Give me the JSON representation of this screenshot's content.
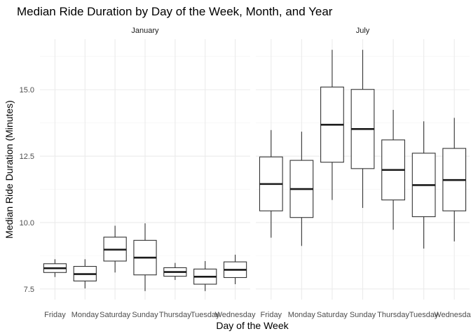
{
  "chart_data": {
    "type": "boxplot",
    "title": "Median Ride Duration by Day of the Week, Month, and Year",
    "xlabel": "Day of the Week",
    "ylabel": "Median Ride Duration (Minutes)",
    "ylim": [
      7.1,
      16.9
    ],
    "yticks": [
      7.5,
      10.0,
      12.5,
      15.0
    ],
    "ytick_labels": [
      "7.5",
      "10.0",
      "12.5",
      "15.0"
    ],
    "grid": true,
    "categories": [
      "Friday",
      "Monday",
      "Saturday",
      "Sunday",
      "Thursday",
      "Tuesday",
      "Wednesday"
    ],
    "panels": [
      {
        "label": "January",
        "boxes": [
          {
            "category": "Friday",
            "min": 7.95,
            "q1": 8.12,
            "median": 8.28,
            "q3": 8.45,
            "max": 8.62
          },
          {
            "category": "Monday",
            "min": 7.52,
            "q1": 7.8,
            "median": 8.06,
            "q3": 8.35,
            "max": 8.62
          },
          {
            "category": "Saturday",
            "min": 8.12,
            "q1": 8.55,
            "median": 8.98,
            "q3": 9.45,
            "max": 9.88
          },
          {
            "category": "Sunday",
            "min": 7.42,
            "q1": 8.03,
            "median": 8.68,
            "q3": 9.33,
            "max": 9.97
          },
          {
            "category": "Thursday",
            "min": 7.84,
            "q1": 7.98,
            "median": 8.14,
            "q3": 8.3,
            "max": 8.48
          },
          {
            "category": "Tuesday",
            "min": 7.42,
            "q1": 7.68,
            "median": 7.96,
            "q3": 8.25,
            "max": 8.55
          },
          {
            "category": "Wednesday",
            "min": 7.68,
            "q1": 7.93,
            "median": 8.22,
            "q3": 8.52,
            "max": 8.79
          }
        ]
      },
      {
        "label": "July",
        "boxes": [
          {
            "category": "Friday",
            "min": 9.43,
            "q1": 10.44,
            "median": 11.45,
            "q3": 12.47,
            "max": 13.48
          },
          {
            "category": "Monday",
            "min": 9.12,
            "q1": 10.19,
            "median": 11.26,
            "q3": 12.34,
            "max": 13.42
          },
          {
            "category": "Saturday",
            "min": 10.85,
            "q1": 12.27,
            "median": 13.68,
            "q3": 15.1,
            "max": 16.5
          },
          {
            "category": "Sunday",
            "min": 10.55,
            "q1": 12.03,
            "median": 13.52,
            "q3": 15.01,
            "max": 16.5
          },
          {
            "category": "Thursday",
            "min": 9.73,
            "q1": 10.85,
            "median": 11.98,
            "q3": 13.11,
            "max": 14.24
          },
          {
            "category": "Tuesday",
            "min": 9.02,
            "q1": 10.22,
            "median": 11.41,
            "q3": 12.61,
            "max": 13.81
          },
          {
            "category": "Wednesday",
            "min": 9.29,
            "q1": 10.44,
            "median": 11.6,
            "q3": 12.79,
            "max": 13.94
          }
        ]
      }
    ]
  }
}
